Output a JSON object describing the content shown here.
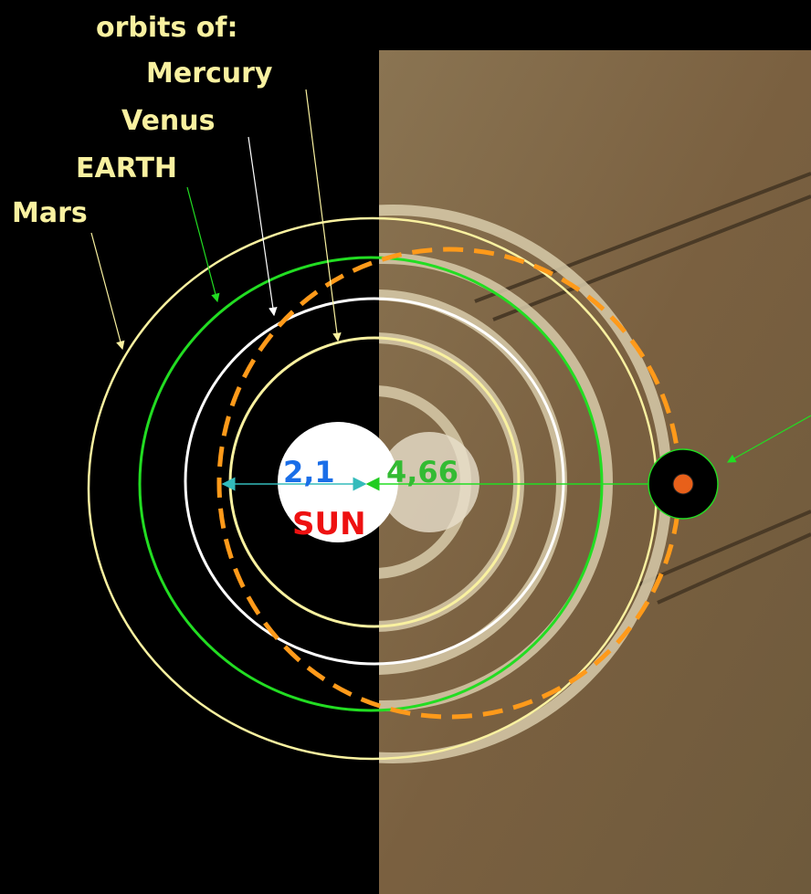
{
  "labels": {
    "heading": "orbits of:",
    "mercury": "Mercury",
    "venus": "Venus",
    "earth": "EARTH",
    "mars": "Mars"
  },
  "distances": {
    "inner": "2,1",
    "outer": "4,66"
  },
  "sun": "SUN"
}
